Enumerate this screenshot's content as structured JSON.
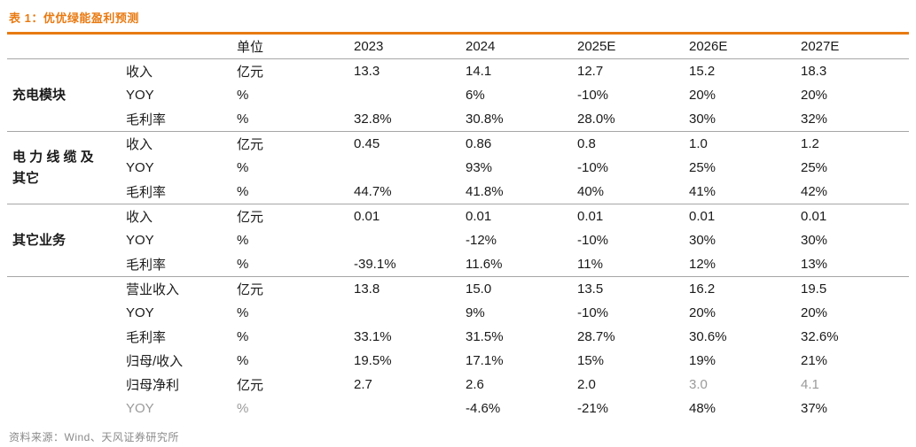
{
  "title": "表 1：优优绿能盈利预测",
  "source": "资料来源：Wind、天风证券研究所",
  "colors": {
    "accent_orange": "#e87a12",
    "divider_gray": "#a6a6a6",
    "muted_text": "#9a9a9a"
  },
  "table": {
    "columns": [
      "单位",
      "2023",
      "2024",
      "2025E",
      "2026E",
      "2027E"
    ],
    "groups": [
      {
        "name": "充电模块",
        "rows": [
          {
            "label": "收入",
            "unit": "亿元",
            "values": [
              "13.3",
              "14.1",
              "12.7",
              "15.2",
              "18.3"
            ]
          },
          {
            "label": "YOY",
            "unit": "%",
            "values": [
              "",
              "6%",
              "-10%",
              "20%",
              "20%"
            ]
          },
          {
            "label": "毛利率",
            "unit": "%",
            "values": [
              "32.8%",
              "30.8%",
              "28.0%",
              "30%",
              "32%"
            ]
          }
        ]
      },
      {
        "name": "电 力 线 缆 及\n其它",
        "rows": [
          {
            "label": "收入",
            "unit": "亿元",
            "values": [
              "0.45",
              "0.86",
              "0.8",
              "1.0",
              "1.2"
            ]
          },
          {
            "label": "YOY",
            "unit": "%",
            "values": [
              "",
              "93%",
              "-10%",
              "25%",
              "25%"
            ]
          },
          {
            "label": "毛利率",
            "unit": "%",
            "values": [
              "44.7%",
              "41.8%",
              "40%",
              "41%",
              "42%"
            ]
          }
        ]
      },
      {
        "name": "其它业务",
        "rows": [
          {
            "label": "收入",
            "unit": "亿元",
            "values": [
              "0.01",
              "0.01",
              "0.01",
              "0.01",
              "0.01"
            ]
          },
          {
            "label": "YOY",
            "unit": "%",
            "values": [
              "",
              "-12%",
              "-10%",
              "30%",
              "30%"
            ]
          },
          {
            "label": "毛利率",
            "unit": "%",
            "values": [
              "-39.1%",
              "11.6%",
              "11%",
              "12%",
              "13%"
            ]
          }
        ]
      },
      {
        "name": "",
        "rows": [
          {
            "label": "营业收入",
            "unit": "亿元",
            "values": [
              "13.8",
              "15.0",
              "13.5",
              "16.2",
              "19.5"
            ]
          },
          {
            "label": "YOY",
            "unit": "%",
            "values": [
              "",
              "9%",
              "-10%",
              "20%",
              "20%"
            ]
          },
          {
            "label": "毛利率",
            "unit": "%",
            "values": [
              "33.1%",
              "31.5%",
              "28.7%",
              "30.6%",
              "32.6%"
            ]
          },
          {
            "label": "归母/收入",
            "unit": "%",
            "values": [
              "19.5%",
              "17.1%",
              "15%",
              "19%",
              "21%"
            ]
          },
          {
            "label": "归母净利",
            "unit": "亿元",
            "values": [
              "2.7",
              "2.6",
              "2.0",
              "3.0",
              "4.1"
            ]
          },
          {
            "label": "YOY",
            "unit": "%",
            "values": [
              "",
              "-4.6%",
              "-21%",
              "48%",
              "37%"
            ]
          }
        ]
      }
    ]
  }
}
